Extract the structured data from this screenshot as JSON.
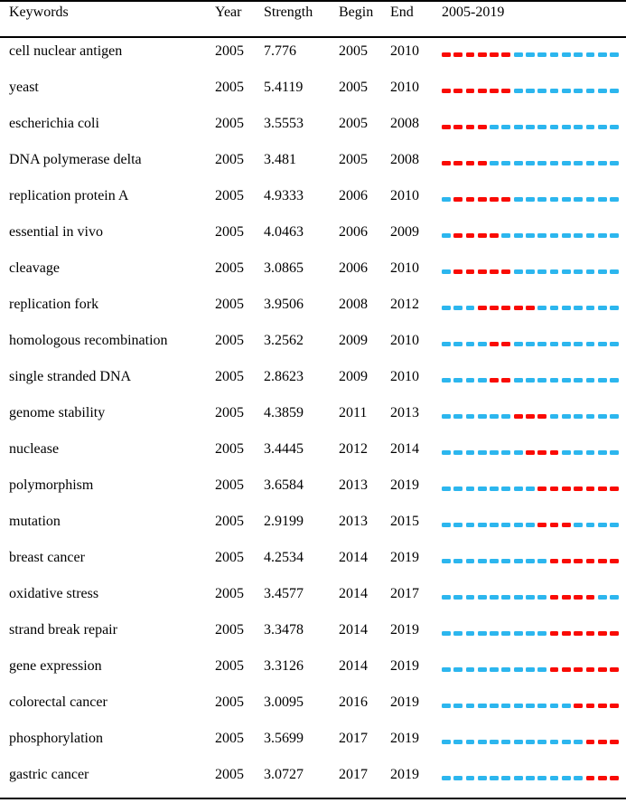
{
  "chart_data": {
    "type": "table",
    "columns": [
      "Keywords",
      "Year",
      "Strength",
      "Begin",
      "End",
      "2005-2019"
    ],
    "timeline": {
      "start_year": 2005,
      "end_year": 2019
    },
    "colors": {
      "burst_segment": "#f90b04",
      "base_segment": "#2cb6ee",
      "text": "#000000",
      "rule": "#000000"
    },
    "rows": [
      {
        "keyword": "cell nuclear antigen",
        "year": "2005",
        "strength": "7.776",
        "begin": 2005,
        "end": 2010
      },
      {
        "keyword": "yeast",
        "year": "2005",
        "strength": "5.4119",
        "begin": 2005,
        "end": 2010
      },
      {
        "keyword": "escherichia coli",
        "year": "2005",
        "strength": "3.5553",
        "begin": 2005,
        "end": 2008
      },
      {
        "keyword": "DNA polymerase delta",
        "year": "2005",
        "strength": "3.481",
        "begin": 2005,
        "end": 2008
      },
      {
        "keyword": "replication protein A",
        "year": "2005",
        "strength": "4.9333",
        "begin": 2006,
        "end": 2010
      },
      {
        "keyword": "essential in vivo",
        "year": "2005",
        "strength": "4.0463",
        "begin": 2006,
        "end": 2009
      },
      {
        "keyword": "cleavage",
        "year": "2005",
        "strength": "3.0865",
        "begin": 2006,
        "end": 2010
      },
      {
        "keyword": "replication fork",
        "year": "2005",
        "strength": "3.9506",
        "begin": 2008,
        "end": 2012
      },
      {
        "keyword": "homologous recombination",
        "year": "2005",
        "strength": "3.2562",
        "begin": 2009,
        "end": 2010
      },
      {
        "keyword": "single stranded DNA",
        "year": "2005",
        "strength": "2.8623",
        "begin": 2009,
        "end": 2010
      },
      {
        "keyword": "genome stability",
        "year": "2005",
        "strength": "4.3859",
        "begin": 2011,
        "end": 2013
      },
      {
        "keyword": "nuclease",
        "year": "2005",
        "strength": "3.4445",
        "begin": 2012,
        "end": 2014
      },
      {
        "keyword": "polymorphism",
        "year": "2005",
        "strength": "3.6584",
        "begin": 2013,
        "end": 2019
      },
      {
        "keyword": "mutation",
        "year": "2005",
        "strength": "2.9199",
        "begin": 2013,
        "end": 2015
      },
      {
        "keyword": "breast cancer",
        "year": "2005",
        "strength": "4.2534",
        "begin": 2014,
        "end": 2019
      },
      {
        "keyword": "oxidative stress",
        "year": "2005",
        "strength": "3.4577",
        "begin": 2014,
        "end": 2017
      },
      {
        "keyword": "strand break repair",
        "year": "2005",
        "strength": "3.3478",
        "begin": 2014,
        "end": 2019
      },
      {
        "keyword": "gene expression",
        "year": "2005",
        "strength": "3.3126",
        "begin": 2014,
        "end": 2019
      },
      {
        "keyword": "colorectal cancer",
        "year": "2005",
        "strength": "3.0095",
        "begin": 2016,
        "end": 2019
      },
      {
        "keyword": "phosphorylation",
        "year": "2005",
        "strength": "3.5699",
        "begin": 2017,
        "end": 2019
      },
      {
        "keyword": "gastric cancer",
        "year": "2005",
        "strength": "3.0727",
        "begin": 2017,
        "end": 2019
      }
    ]
  }
}
